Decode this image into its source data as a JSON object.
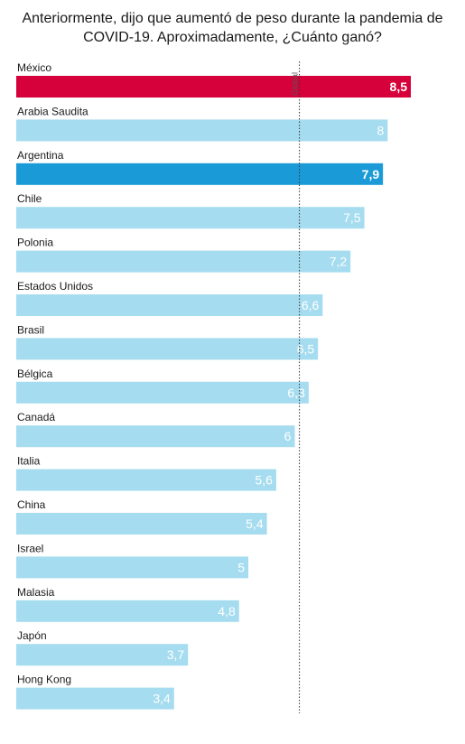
{
  "title": "Anteriormente, dijo que aumentó de peso durante la pandemia de COVID-19. Aproximadamente, ¿Cuánto ganó?",
  "chart_data": {
    "type": "bar",
    "orientation": "horizontal",
    "title": "Anteriormente, dijo que aumentó de peso durante la pandemia de COVID-19. Aproximadamente, ¿Cuánto ganó?",
    "categories": [
      "México",
      "Arabia Saudita",
      "Argentina",
      "Chile",
      "Polonia",
      "Estados Unidos",
      "Brasil",
      "Bélgica",
      "Canadá",
      "Italia",
      "China",
      "Israel",
      "Malasia",
      "Japón",
      "Hong Kong"
    ],
    "values": [
      8.5,
      8,
      7.9,
      7.5,
      7.2,
      6.6,
      6.5,
      6.3,
      6,
      5.6,
      5.4,
      5,
      4.8,
      3.7,
      3.4
    ],
    "value_labels": [
      "8,5",
      "8",
      "7,9",
      "7,5",
      "7,2",
      "6,6",
      "6,5",
      "6,3",
      "6",
      "5,6",
      "5,4",
      "5",
      "4,8",
      "3,7",
      "3,4"
    ],
    "highlight": {
      "México": "#d6003a",
      "Argentina": "#1a9ad6"
    },
    "default_color": "#a6dcef",
    "reference_line": {
      "label": "Global",
      "value": 6.1
    },
    "xlim": [
      0,
      8.5
    ]
  }
}
